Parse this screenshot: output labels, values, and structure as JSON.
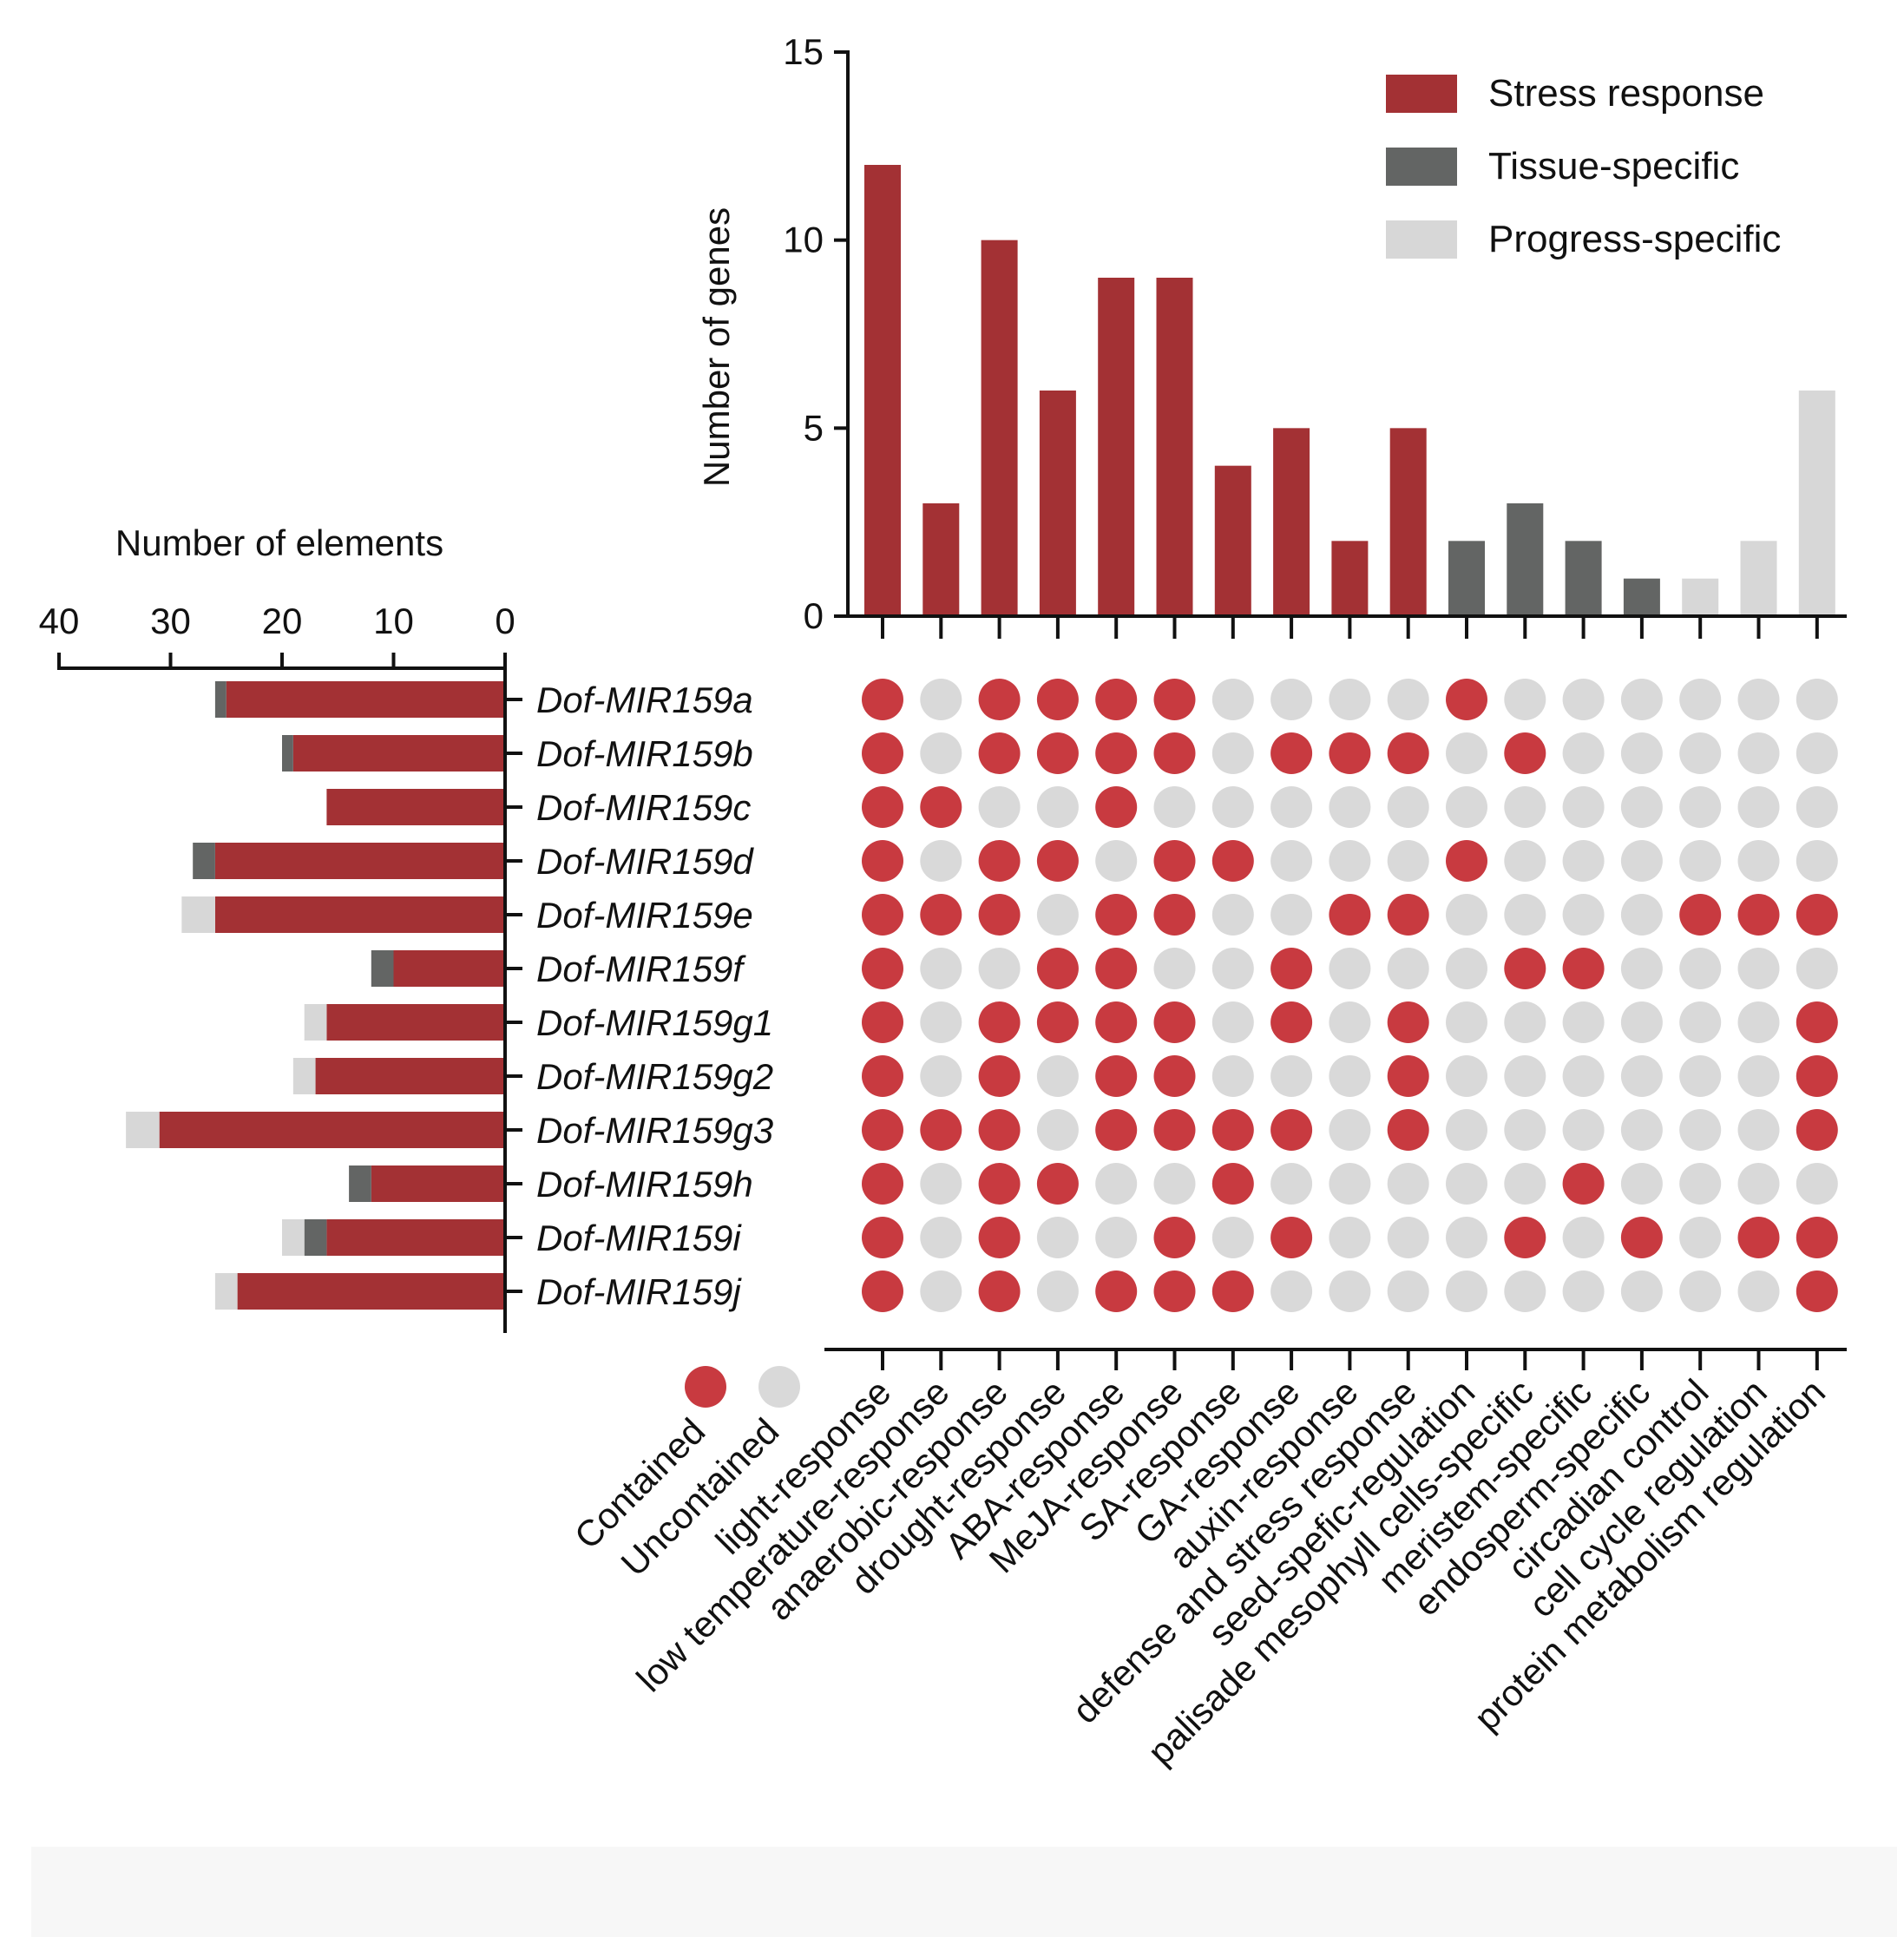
{
  "chart_data": {
    "type": "upset-bar-matrix",
    "colors": {
      "stress": "#a33134",
      "tissue": "#636564",
      "progress": "#d7d7d7",
      "contained": "#c83a40",
      "uncontained": "#d9d9d9",
      "axis": "#111111"
    },
    "top_bar": {
      "ylabel": "Number of genes",
      "ylim": [
        0,
        15
      ],
      "yticks": [
        0,
        5,
        10,
        15
      ],
      "categories": [
        "light-response",
        "low temperature-response",
        "anaerobic-response",
        "drought-response",
        "ABA-response",
        "MeJA-response",
        "SA-response",
        "GA-response",
        "auxin-response",
        "defense and stress response",
        "seed-spefic-regulation",
        "palisade mesophyll cells-specific",
        "meristem-specific",
        "endosperm-specific",
        "circadian control",
        "cell cycle regulation",
        "protein metabolism regulation"
      ],
      "values": [
        12,
        3,
        10,
        6,
        9,
        9,
        4,
        5,
        2,
        5,
        2,
        3,
        2,
        1,
        1,
        2,
        6
      ],
      "groups": [
        "stress",
        "stress",
        "stress",
        "stress",
        "stress",
        "stress",
        "stress",
        "stress",
        "stress",
        "stress",
        "tissue",
        "tissue",
        "tissue",
        "tissue",
        "progress",
        "progress",
        "progress"
      ]
    },
    "legend": [
      {
        "key": "stress",
        "label": "Stress response"
      },
      {
        "key": "tissue",
        "label": "Tissue-specific"
      },
      {
        "key": "progress",
        "label": "Progress-specific"
      }
    ],
    "left_bar": {
      "xlabel": "Number of elements",
      "xlim": [
        0,
        40
      ],
      "xticks": [
        40,
        30,
        20,
        10,
        0
      ],
      "genes": [
        "Dof-MIR159a",
        "Dof-MIR159b",
        "Dof-MIR159c",
        "Dof-MIR159d",
        "Dof-MIR159e",
        "Dof-MIR159f",
        "Dof-MIR159g1",
        "Dof-MIR159g2",
        "Dof-MIR159g3",
        "Dof-MIR159h",
        "Dof-MIR159i",
        "Dof-MIR159j"
      ],
      "series": [
        {
          "name": "Stress response",
          "key": "stress",
          "values": [
            25,
            19,
            16,
            26,
            26,
            10,
            16,
            17,
            31,
            12,
            16,
            24
          ]
        },
        {
          "name": "Tissue-specific",
          "key": "tissue",
          "values": [
            1,
            1,
            0,
            2,
            0,
            2,
            0,
            0,
            0,
            2,
            2,
            0
          ]
        },
        {
          "name": "Progress-specific",
          "key": "progress",
          "values": [
            0,
            0,
            0,
            0,
            3,
            0,
            2,
            2,
            3,
            0,
            2,
            2
          ]
        }
      ]
    },
    "matrix": [
      [
        1,
        0,
        1,
        1,
        1,
        1,
        0,
        0,
        0,
        0,
        1,
        0,
        0,
        0,
        0,
        0,
        0
      ],
      [
        1,
        0,
        1,
        1,
        1,
        1,
        0,
        1,
        1,
        1,
        0,
        1,
        0,
        0,
        0,
        0,
        0
      ],
      [
        1,
        1,
        0,
        0,
        1,
        0,
        0,
        0,
        0,
        0,
        0,
        0,
        0,
        0,
        0,
        0,
        0
      ],
      [
        1,
        0,
        1,
        1,
        0,
        1,
        1,
        0,
        0,
        0,
        1,
        0,
        0,
        0,
        0,
        0,
        0
      ],
      [
        1,
        1,
        1,
        0,
        1,
        1,
        0,
        0,
        1,
        1,
        0,
        0,
        0,
        0,
        1,
        1,
        1
      ],
      [
        1,
        0,
        0,
        1,
        1,
        0,
        0,
        1,
        0,
        0,
        0,
        1,
        1,
        0,
        0,
        0,
        0
      ],
      [
        1,
        0,
        1,
        1,
        1,
        1,
        0,
        1,
        0,
        1,
        0,
        0,
        0,
        0,
        0,
        0,
        1
      ],
      [
        1,
        0,
        1,
        0,
        1,
        1,
        0,
        0,
        0,
        1,
        0,
        0,
        0,
        0,
        0,
        0,
        1
      ],
      [
        1,
        1,
        1,
        0,
        1,
        1,
        1,
        1,
        0,
        1,
        0,
        0,
        0,
        0,
        0,
        0,
        1
      ],
      [
        1,
        0,
        1,
        1,
        0,
        0,
        1,
        0,
        0,
        0,
        0,
        0,
        1,
        0,
        0,
        0,
        0
      ],
      [
        1,
        0,
        1,
        0,
        0,
        1,
        0,
        1,
        0,
        0,
        0,
        1,
        0,
        1,
        0,
        1,
        1
      ],
      [
        1,
        0,
        1,
        0,
        1,
        1,
        1,
        0,
        0,
        0,
        0,
        0,
        0,
        0,
        0,
        0,
        1
      ]
    ],
    "dot_legend": [
      {
        "key": "contained",
        "label": "Contained"
      },
      {
        "key": "uncontained",
        "label": "Uncontained"
      }
    ]
  }
}
